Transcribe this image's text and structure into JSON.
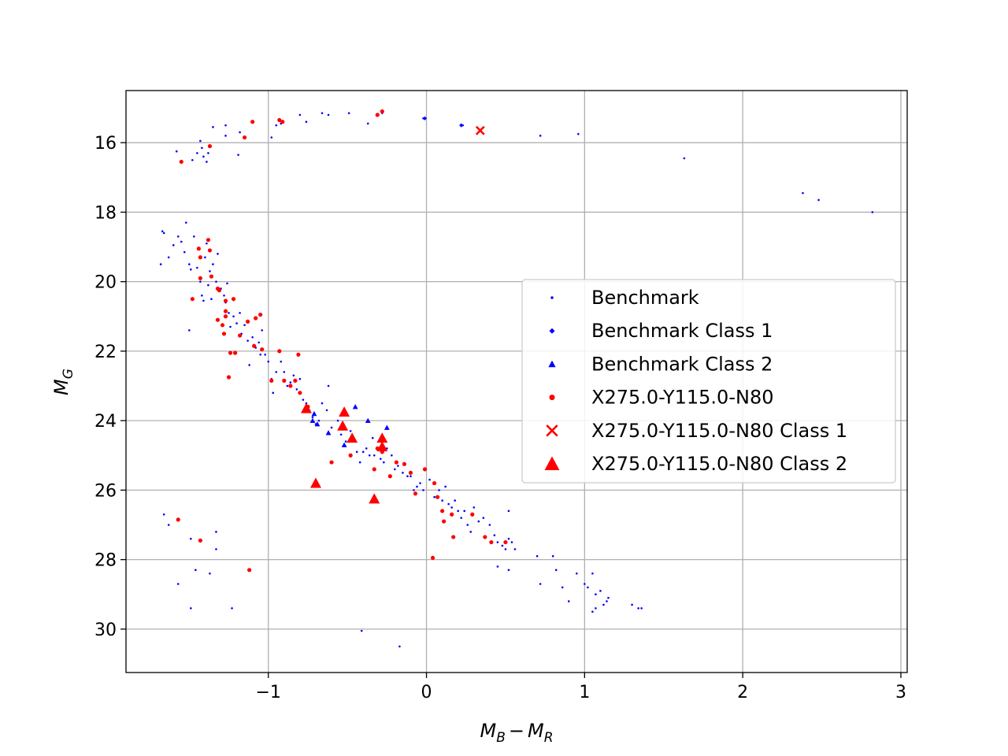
{
  "chart_data": {
    "type": "scatter",
    "title": "",
    "xlabel_main": "M",
    "xlabel_sub1": "B",
    "xlabel_minus": "−",
    "xlabel_main2": "M",
    "xlabel_sub2": "R",
    "ylabel_main": "M",
    "ylabel_sub": "G",
    "xlim": [
      -1.9,
      3.04
    ],
    "ylim": [
      31.25,
      14.5
    ],
    "y_inverted": true,
    "grid": true,
    "legend_placement": "center-right",
    "xticks": [
      {
        "value": -1,
        "label": "−1"
      },
      {
        "value": 0,
        "label": "0"
      },
      {
        "value": 1,
        "label": "1"
      },
      {
        "value": 2,
        "label": "2"
      },
      {
        "value": 3,
        "label": "3"
      }
    ],
    "yticks": [
      {
        "value": 16,
        "label": "16"
      },
      {
        "value": 18,
        "label": "18"
      },
      {
        "value": 20,
        "label": "20"
      },
      {
        "value": 22,
        "label": "22"
      },
      {
        "value": 24,
        "label": "24"
      },
      {
        "value": 26,
        "label": "26"
      },
      {
        "value": 28,
        "label": "28"
      },
      {
        "value": 30,
        "label": "30"
      }
    ],
    "series": [
      {
        "name": "Benchmark",
        "color": "#0000ff",
        "marker": "small-dot",
        "points": [
          [
            -1.58,
            16.25
          ],
          [
            -1.48,
            16.5
          ],
          [
            -1.45,
            16.3
          ],
          [
            -1.43,
            15.95
          ],
          [
            -1.42,
            16.15
          ],
          [
            -1.41,
            16.4
          ],
          [
            -1.39,
            16.55
          ],
          [
            -1.38,
            16.3
          ],
          [
            -1.35,
            15.55
          ],
          [
            -1.27,
            15.5
          ],
          [
            -1.27,
            15.8
          ],
          [
            -1.18,
            15.7
          ],
          [
            -1.19,
            16.35
          ],
          [
            -0.98,
            15.85
          ],
          [
            -0.95,
            15.5
          ],
          [
            -0.92,
            15.45
          ],
          [
            -0.8,
            15.2
          ],
          [
            -0.76,
            15.4
          ],
          [
            -0.66,
            15.15
          ],
          [
            -0.62,
            15.2
          ],
          [
            -0.49,
            15.15
          ],
          [
            -0.37,
            15.45
          ],
          [
            -0.28,
            15.15
          ],
          [
            -0.02,
            15.3
          ],
          [
            0.23,
            15.5
          ],
          [
            0.72,
            15.8
          ],
          [
            0.96,
            15.75
          ],
          [
            1.63,
            16.45
          ],
          [
            2.38,
            17.45
          ],
          [
            2.48,
            17.65
          ],
          [
            2.82,
            18.0
          ],
          [
            -1.67,
            18.55
          ],
          [
            -1.66,
            18.6
          ],
          [
            -1.68,
            19.5
          ],
          [
            -1.63,
            19.3
          ],
          [
            -1.6,
            18.95
          ],
          [
            -1.57,
            18.7
          ],
          [
            -1.55,
            18.85
          ],
          [
            -1.52,
            18.3
          ],
          [
            -1.5,
            19.5
          ],
          [
            -1.49,
            19.65
          ],
          [
            -1.53,
            19.15
          ],
          [
            -1.47,
            18.7
          ],
          [
            -1.44,
            19.05
          ],
          [
            -1.45,
            19.6
          ],
          [
            -1.43,
            20.0
          ],
          [
            -1.42,
            20.4
          ],
          [
            -1.41,
            20.55
          ],
          [
            -1.4,
            19.3
          ],
          [
            -1.39,
            18.9
          ],
          [
            -1.38,
            20.1
          ],
          [
            -1.37,
            19.7
          ],
          [
            -1.36,
            20.5
          ],
          [
            -1.35,
            19.5
          ],
          [
            -1.33,
            20.0
          ],
          [
            -1.32,
            19.2
          ],
          [
            -1.3,
            20.2
          ],
          [
            -1.28,
            20.4
          ],
          [
            -1.26,
            20.05
          ],
          [
            -1.27,
            20.6
          ],
          [
            -1.25,
            20.9
          ],
          [
            -1.24,
            21.3
          ],
          [
            -1.22,
            21.0
          ],
          [
            -1.2,
            21.2
          ],
          [
            -1.18,
            20.9
          ],
          [
            -1.17,
            21.5
          ],
          [
            -1.15,
            21.25
          ],
          [
            -1.13,
            21.7
          ],
          [
            -1.12,
            22.4
          ],
          [
            -1.1,
            21.6
          ],
          [
            -1.08,
            21.9
          ],
          [
            -1.06,
            21.75
          ],
          [
            -1.05,
            22.1
          ],
          [
            -1.04,
            21.4
          ],
          [
            -1.02,
            22.1
          ],
          [
            -1.0,
            22.3
          ],
          [
            -0.98,
            22.8
          ],
          [
            -0.97,
            23.2
          ],
          [
            -0.95,
            22.6
          ],
          [
            -0.93,
            22.0
          ],
          [
            -0.92,
            22.3
          ],
          [
            -0.9,
            22.6
          ],
          [
            -0.88,
            23.0
          ],
          [
            -0.86,
            22.9
          ],
          [
            -0.84,
            22.7
          ],
          [
            -0.82,
            23.1
          ],
          [
            -0.8,
            22.8
          ],
          [
            -0.78,
            23.4
          ],
          [
            -0.76,
            23.5
          ],
          [
            -0.74,
            23.7
          ],
          [
            -0.72,
            23.9
          ],
          [
            -0.7,
            24.1
          ],
          [
            -0.68,
            24.0
          ],
          [
            -0.66,
            23.5
          ],
          [
            -0.63,
            23.7
          ],
          [
            -0.62,
            23.0
          ],
          [
            -0.6,
            24.2
          ],
          [
            -0.56,
            24.0
          ],
          [
            -0.54,
            24.4
          ],
          [
            -0.51,
            24.6
          ],
          [
            -0.48,
            24.3
          ],
          [
            -0.46,
            24.6
          ],
          [
            -0.44,
            24.9
          ],
          [
            -0.42,
            25.2
          ],
          [
            -0.4,
            24.9
          ],
          [
            -0.38,
            24.8
          ],
          [
            -0.36,
            25.0
          ],
          [
            -0.34,
            24.5
          ],
          [
            -0.33,
            25.0
          ],
          [
            -0.31,
            24.8
          ],
          [
            -0.29,
            25.1
          ],
          [
            -0.27,
            25.2
          ],
          [
            -0.25,
            24.8
          ],
          [
            -0.22,
            25.0
          ],
          [
            -0.2,
            25.4
          ],
          [
            -0.18,
            25.3
          ],
          [
            -0.15,
            25.5
          ],
          [
            -0.12,
            25.6
          ],
          [
            -0.1,
            25.6
          ],
          [
            -0.08,
            26.0
          ],
          [
            -0.06,
            25.9
          ],
          [
            -0.04,
            25.8
          ],
          [
            -0.02,
            26.0
          ],
          [
            0.02,
            25.7
          ],
          [
            0.05,
            26.2
          ],
          [
            0.08,
            26.0
          ],
          [
            0.1,
            26.3
          ],
          [
            0.12,
            25.9
          ],
          [
            0.14,
            26.4
          ],
          [
            0.16,
            26.5
          ],
          [
            0.18,
            26.3
          ],
          [
            0.2,
            26.6
          ],
          [
            0.22,
            26.8
          ],
          [
            0.24,
            26.6
          ],
          [
            0.26,
            27.0
          ],
          [
            0.28,
            27.2
          ],
          [
            0.3,
            26.5
          ],
          [
            0.33,
            26.9
          ],
          [
            0.36,
            26.8
          ],
          [
            0.4,
            27.0
          ],
          [
            0.43,
            27.3
          ],
          [
            0.45,
            27.5
          ],
          [
            0.48,
            27.6
          ],
          [
            0.5,
            27.7
          ],
          [
            0.52,
            27.4
          ],
          [
            0.54,
            27.5
          ],
          [
            0.56,
            27.7
          ],
          [
            0.52,
            26.6
          ],
          [
            0.45,
            28.2
          ],
          [
            0.52,
            28.3
          ],
          [
            0.7,
            27.9
          ],
          [
            0.72,
            28.7
          ],
          [
            0.8,
            27.9
          ],
          [
            0.82,
            28.3
          ],
          [
            0.86,
            28.8
          ],
          [
            0.9,
            29.2
          ],
          [
            0.95,
            28.4
          ],
          [
            1.0,
            28.7
          ],
          [
            1.02,
            28.8
          ],
          [
            1.05,
            28.4
          ],
          [
            1.07,
            29.0
          ],
          [
            1.1,
            28.9
          ],
          [
            1.12,
            29.3
          ],
          [
            1.14,
            29.2
          ],
          [
            1.15,
            29.1
          ],
          [
            1.05,
            29.5
          ],
          [
            1.07,
            29.4
          ],
          [
            1.3,
            29.3
          ],
          [
            1.34,
            29.4
          ],
          [
            1.36,
            29.4
          ],
          [
            -1.5,
            21.4
          ],
          [
            -1.66,
            26.7
          ],
          [
            -1.63,
            27.0
          ],
          [
            -1.49,
            27.4
          ],
          [
            -1.57,
            28.7
          ],
          [
            -1.46,
            28.3
          ],
          [
            -1.49,
            29.4
          ],
          [
            -1.37,
            28.4
          ],
          [
            -1.33,
            27.2
          ],
          [
            -1.33,
            27.7
          ],
          [
            -1.23,
            29.4
          ],
          [
            -0.41,
            30.05
          ],
          [
            -0.17,
            30.5
          ]
        ]
      },
      {
        "name": "Benchmark Class 1",
        "color": "#0000ff",
        "marker": "diamond",
        "points": [
          [
            -0.01,
            15.3
          ],
          [
            0.22,
            15.5
          ]
        ]
      },
      {
        "name": "Benchmark Class 2",
        "color": "#0000ff",
        "marker": "small-triangle",
        "points": [
          [
            -0.72,
            24.0
          ],
          [
            -0.69,
            24.1
          ],
          [
            -0.62,
            24.35
          ],
          [
            -0.52,
            24.7
          ],
          [
            -0.45,
            23.6
          ],
          [
            -0.37,
            24.0
          ],
          [
            -0.25,
            24.2
          ],
          [
            -0.71,
            23.8
          ]
        ]
      },
      {
        "name": "X275.0-Y115.0-N80",
        "color": "#ff0000",
        "marker": "dot",
        "points": [
          [
            -1.55,
            16.55
          ],
          [
            -1.37,
            16.1
          ],
          [
            -1.15,
            15.85
          ],
          [
            -1.1,
            15.4
          ],
          [
            -0.93,
            15.35
          ],
          [
            -0.91,
            15.4
          ],
          [
            -0.31,
            15.2
          ],
          [
            -0.28,
            15.1
          ],
          [
            -1.44,
            19.05
          ],
          [
            -1.43,
            19.3
          ],
          [
            -1.43,
            19.9
          ],
          [
            -1.38,
            18.8
          ],
          [
            -1.37,
            19.1
          ],
          [
            -1.36,
            19.85
          ],
          [
            -1.32,
            20.2
          ],
          [
            -1.31,
            20.25
          ],
          [
            -1.48,
            20.5
          ],
          [
            -1.32,
            21.1
          ],
          [
            -1.29,
            21.25
          ],
          [
            -1.28,
            21.5
          ],
          [
            -1.27,
            20.55
          ],
          [
            -1.27,
            20.85
          ],
          [
            -1.27,
            21.0
          ],
          [
            -1.22,
            20.5
          ],
          [
            -1.24,
            22.05
          ],
          [
            -1.21,
            22.05
          ],
          [
            -1.25,
            22.75
          ],
          [
            -1.18,
            21.55
          ],
          [
            -1.13,
            21.15
          ],
          [
            -1.09,
            21.85
          ],
          [
            -1.08,
            21.05
          ],
          [
            -1.05,
            20.95
          ],
          [
            -1.04,
            21.95
          ],
          [
            -0.98,
            22.85
          ],
          [
            -0.93,
            22.0
          ],
          [
            -0.9,
            22.85
          ],
          [
            -0.86,
            23.0
          ],
          [
            -0.83,
            22.85
          ],
          [
            -0.81,
            22.1
          ],
          [
            -0.8,
            23.2
          ],
          [
            -0.75,
            23.6
          ],
          [
            -0.6,
            25.2
          ],
          [
            -0.48,
            25.0
          ],
          [
            -0.33,
            25.4
          ],
          [
            -0.31,
            24.8
          ],
          [
            -0.28,
            24.9
          ],
          [
            -0.23,
            25.6
          ],
          [
            -0.19,
            25.2
          ],
          [
            -0.14,
            25.25
          ],
          [
            -0.1,
            25.5
          ],
          [
            -0.07,
            26.1
          ],
          [
            -0.01,
            25.4
          ],
          [
            0.05,
            25.8
          ],
          [
            0.07,
            26.2
          ],
          [
            0.1,
            26.6
          ],
          [
            0.11,
            26.9
          ],
          [
            0.16,
            26.7
          ],
          [
            0.17,
            27.35
          ],
          [
            0.29,
            26.7
          ],
          [
            0.37,
            27.35
          ],
          [
            0.41,
            27.5
          ],
          [
            0.5,
            27.5
          ],
          [
            0.04,
            27.95
          ],
          [
            -1.57,
            26.85
          ],
          [
            -1.43,
            27.45
          ],
          [
            -1.12,
            28.3
          ]
        ]
      },
      {
        "name": "X275.0-Y115.0-N80 Class 1",
        "color": "#ff0000",
        "marker": "x",
        "points": [
          [
            0.34,
            15.65
          ]
        ]
      },
      {
        "name": "X275.0-Y115.0-N80 Class 2",
        "color": "#ff0000",
        "marker": "triangle",
        "points": [
          [
            -0.76,
            23.65
          ],
          [
            -0.52,
            23.75
          ],
          [
            -0.53,
            24.15
          ],
          [
            -0.47,
            24.5
          ],
          [
            -0.28,
            24.5
          ],
          [
            -0.28,
            24.75
          ],
          [
            -0.7,
            25.8
          ],
          [
            -0.33,
            26.25
          ]
        ]
      }
    ]
  }
}
